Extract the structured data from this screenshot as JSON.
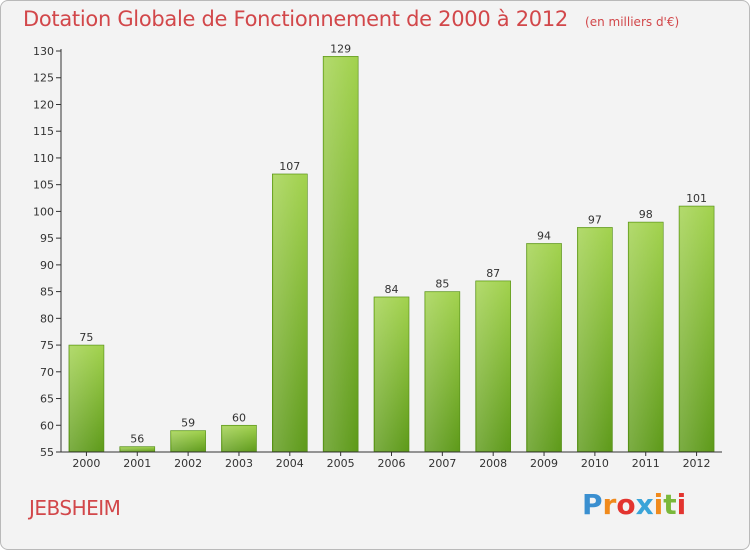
{
  "chart_data": {
    "type": "bar",
    "title": "Dotation Globale de Fonctionnement de 2000 à 2012",
    "subtitle": "(en milliers d'€)",
    "categories": [
      "2000",
      "2001",
      "2002",
      "2003",
      "2004",
      "2005",
      "2006",
      "2007",
      "2008",
      "2009",
      "2010",
      "2011",
      "2012"
    ],
    "values": [
      75,
      56,
      59,
      60,
      107,
      129,
      84,
      85,
      87,
      94,
      97,
      98,
      101
    ],
    "ylim": [
      55,
      130
    ],
    "yticks": [
      55,
      60,
      65,
      70,
      75,
      80,
      85,
      90,
      95,
      100,
      105,
      110,
      115,
      120,
      125,
      130
    ],
    "grid": false,
    "legend": "none"
  },
  "place_name": "JEBSHEIM",
  "logo": {
    "text": "Proxiti",
    "letters": [
      "P",
      "r",
      "o",
      "x",
      "i",
      "t",
      "i"
    ],
    "colors": [
      "#3a8fd0",
      "#f08a1c",
      "#e3342f",
      "#3aa4d8",
      "#f08a1c",
      "#7ab83a",
      "#e3342f"
    ]
  },
  "colors": {
    "bar_light": "#a2d24e",
    "bar_dark": "#5e9a1a",
    "title": "#d2474a",
    "axis": "#333333"
  }
}
